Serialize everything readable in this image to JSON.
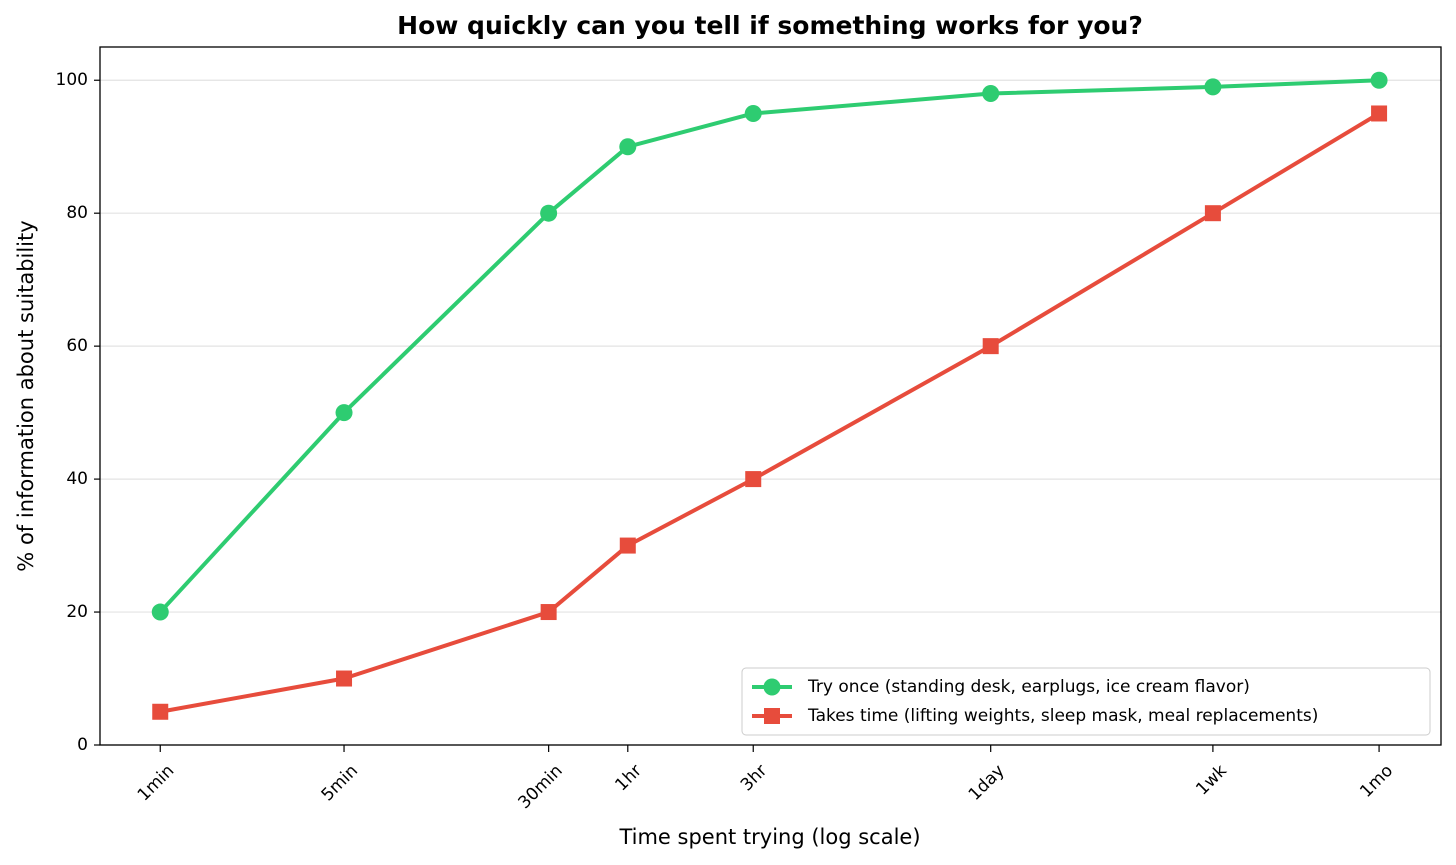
{
  "chart_data": {
    "type": "line",
    "title": "How quickly can you tell if something works for you?",
    "x_label": "Time spent trying (log scale)",
    "y_label": "% of information about suitability",
    "x": [
      1,
      5,
      30,
      60,
      180,
      1440,
      10080,
      43200
    ],
    "series": [
      {
        "name": "Try once (standing desk, earplugs, ice cream flavor)",
        "color": "#2ecc71",
        "marker": "circle",
        "values": [
          20,
          50,
          80,
          90,
          95,
          98,
          99,
          100
        ]
      },
      {
        "name": "Takes time (lifting weights, sleep mask, meal replacements)",
        "color": "#e74c3c",
        "marker": "square",
        "values": [
          5,
          10,
          20,
          30,
          40,
          60,
          80,
          95
        ]
      }
    ],
    "x_log_scale": true,
    "xlim": [
      0.59,
      74300
    ],
    "ylim": [
      0,
      105
    ],
    "xticks": [
      {
        "value": 1,
        "label": "1min"
      },
      {
        "value": 5,
        "label": "5min"
      },
      {
        "value": 30,
        "label": "30min"
      },
      {
        "value": 60,
        "label": "1hr"
      },
      {
        "value": 180,
        "label": "3hr"
      },
      {
        "value": 1440,
        "label": "1day"
      },
      {
        "value": 10080,
        "label": "1wk"
      },
      {
        "value": 43200,
        "label": "1mo"
      }
    ],
    "yticks": [
      0,
      20,
      40,
      60,
      80,
      100
    ],
    "grid": true,
    "legend_position": "lower right"
  }
}
